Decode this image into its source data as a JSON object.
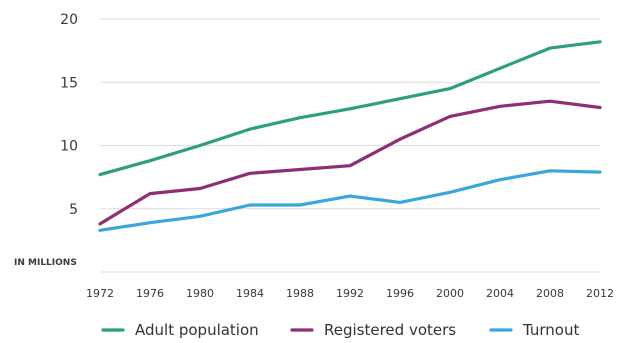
{
  "chart_data": {
    "type": "line",
    "y_unit_label": "IN MILLIONS",
    "x": [
      1972,
      1976,
      1980,
      1984,
      1988,
      1992,
      1996,
      2000,
      2004,
      2008,
      2012
    ],
    "x_tick_labels": [
      "1972",
      "1976",
      "1980",
      "1984",
      "1988",
      "1992",
      "1996",
      "2000",
      "2004",
      "2008",
      "2012"
    ],
    "y_ticks": [
      5,
      10,
      15,
      20
    ],
    "y_tick_labels": [
      "5",
      "10",
      "15",
      "20"
    ],
    "ylim": [
      0,
      20
    ],
    "grid": "horizontal",
    "legend_position": "bottom",
    "series": [
      {
        "name": "Adult population",
        "color": "#2e9e82",
        "values": [
          7.7,
          8.8,
          10.0,
          11.3,
          12.2,
          12.9,
          13.7,
          14.5,
          16.1,
          17.7,
          18.2
        ]
      },
      {
        "name": "Registered voters",
        "color": "#8e2f73",
        "values": [
          3.8,
          6.2,
          6.6,
          7.8,
          8.1,
          8.4,
          10.5,
          12.3,
          13.1,
          13.5,
          13.0
        ]
      },
      {
        "name": "Turnout",
        "color": "#3aa6dc",
        "values": [
          3.3,
          3.9,
          4.4,
          5.3,
          5.3,
          6.0,
          5.5,
          6.3,
          7.3,
          8.0,
          7.9
        ]
      }
    ]
  }
}
